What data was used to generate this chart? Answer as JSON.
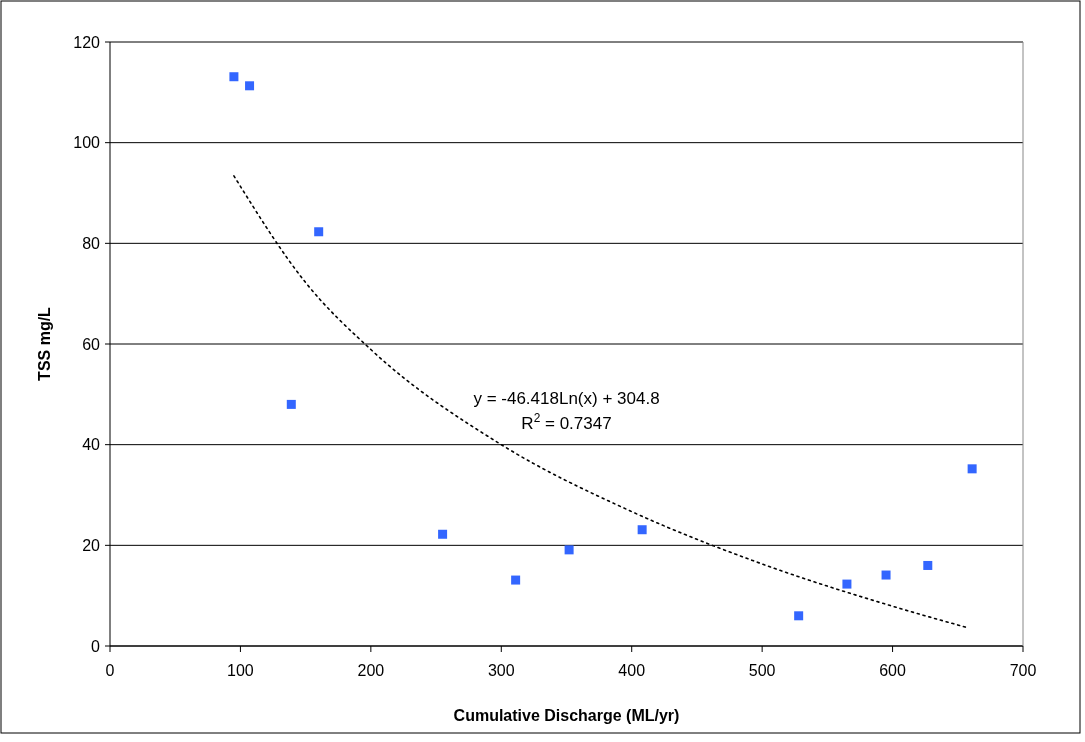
{
  "chart_data": {
    "type": "scatter",
    "xlabel": "Cumulative Discharge (ML/yr)",
    "ylabel": "TSS mg/L",
    "xlim": [
      0,
      700
    ],
    "xticks": [
      0,
      100,
      200,
      300,
      400,
      500,
      600,
      700
    ],
    "ylim": [
      0,
      120
    ],
    "yticks": [
      0,
      20,
      40,
      60,
      80,
      100,
      120
    ],
    "grid": "y",
    "marker": "square",
    "annotations": [
      "y = -46.418Ln(x) + 304.8",
      "R$^{2}$ = 0.7347"
    ],
    "series": [
      {
        "color": "#3366ff",
        "x": [
          95,
          107,
          139,
          160,
          255,
          311,
          352,
          408,
          528,
          565,
          595,
          627,
          661
        ],
        "values": [
          113.1,
          111.3,
          48,
          82.3,
          22.2,
          13.1,
          19.1,
          23.1,
          6,
          12.3,
          14.1,
          16,
          35.2
        ]
      },
      {
        "type": "line",
        "color": "#000000",
        "line_style": "dotted",
        "marker": "none",
        "x": [
          95,
          150,
          200,
          300,
          400,
          500,
          600,
          658
        ],
        "values": [
          93.4,
          72.2,
          58.9,
          40,
          26.7,
          16.3,
          7.9,
          3.6
        ]
      }
    ]
  }
}
